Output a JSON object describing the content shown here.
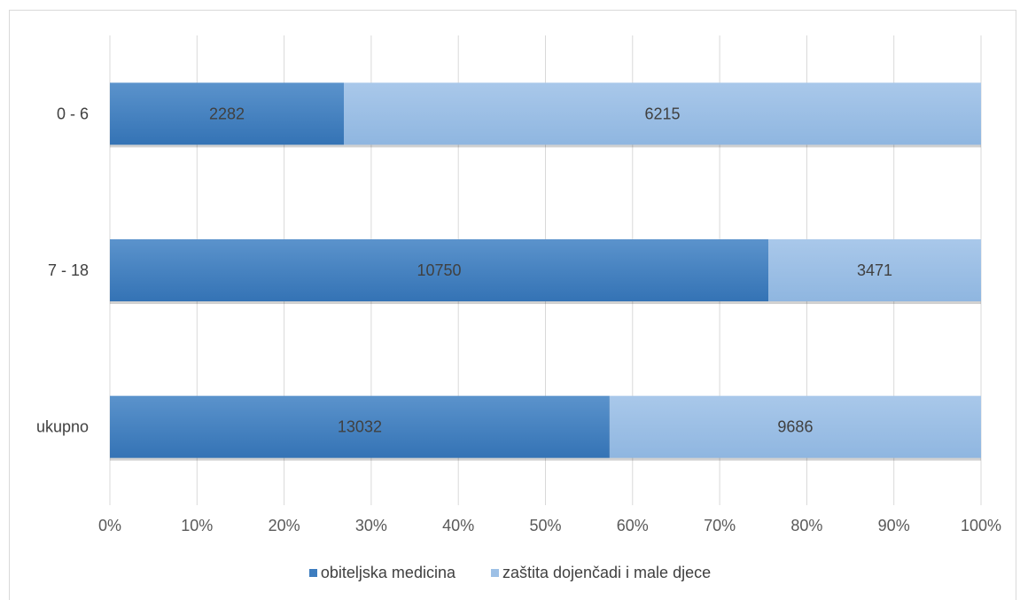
{
  "chart_data": {
    "type": "bar",
    "orientation": "horizontal",
    "stacked": "percent",
    "categories": [
      "0 - 6",
      "7 - 18",
      "ukupno"
    ],
    "series": [
      {
        "name": "obiteljska medicina",
        "values": [
          2282,
          10750,
          13032
        ],
        "color": "#3d7dbf"
      },
      {
        "name": "zaštita dojenčadi i male djece",
        "values": [
          6215,
          3471,
          9686
        ],
        "color": "#9dc0e6"
      }
    ],
    "xlim": [
      0,
      100
    ],
    "x_ticks": [
      "0%",
      "10%",
      "20%",
      "30%",
      "40%",
      "50%",
      "60%",
      "70%",
      "80%",
      "90%",
      "100%"
    ],
    "grid": true,
    "legend": "bottom",
    "data_labels": true
  }
}
